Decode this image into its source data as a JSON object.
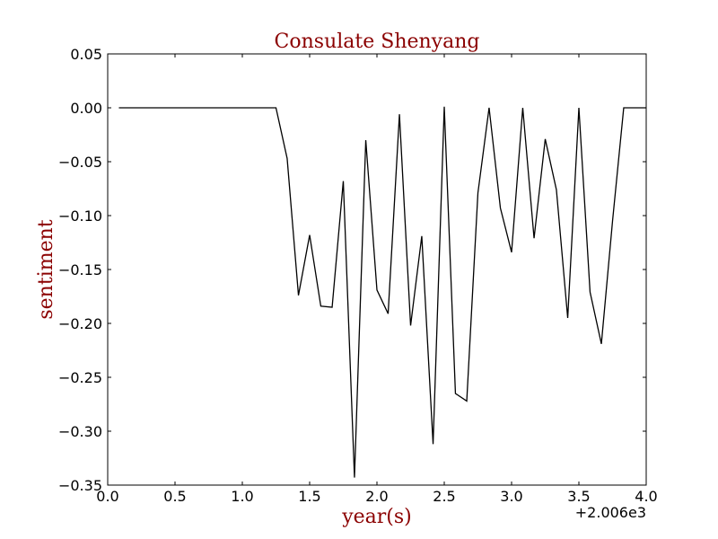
{
  "chart_data": {
    "type": "line",
    "title": "Consulate Shenyang",
    "xlabel": "year(s)",
    "ylabel": "sentiment",
    "x_offset_label": "+2.006e3",
    "xlim": [
      0.0,
      4.0
    ],
    "ylim": [
      -0.35,
      0.05
    ],
    "x_ticks": [
      "0.0",
      "0.5",
      "1.0",
      "1.5",
      "2.0",
      "2.5",
      "3.0",
      "3.5",
      "4.0"
    ],
    "y_ticks": [
      "0.05",
      "0.00",
      "−0.05",
      "−0.10",
      "−0.15",
      "−0.20",
      "−0.25",
      "−0.30",
      "−0.35"
    ],
    "grid": false,
    "colors": {
      "title": "#8b0000",
      "axis_label": "#8b0000",
      "line": "#000000"
    },
    "series": [
      {
        "x": [
          0.083,
          0.167,
          0.25,
          0.333,
          0.417,
          0.5,
          0.583,
          0.667,
          0.75,
          0.833,
          0.917,
          1.0,
          1.083,
          1.167,
          1.25,
          1.333,
          1.417,
          1.5,
          1.583,
          1.667,
          1.75,
          1.833,
          1.917,
          2.0,
          2.083,
          2.167,
          2.25,
          2.333,
          2.417,
          2.5,
          2.583,
          2.667,
          2.75,
          2.833,
          2.917,
          3.0,
          3.083,
          3.167,
          3.25,
          3.333,
          3.417,
          3.5,
          3.583,
          3.667,
          3.75,
          3.833,
          3.917,
          4.0
        ],
        "values": [
          0.0,
          0.0,
          0.0,
          0.0,
          0.0,
          0.0,
          0.0,
          0.0,
          0.0,
          0.0,
          0.0,
          0.0,
          0.0,
          0.0,
          0.0,
          -0.047,
          -0.174,
          -0.118,
          -0.184,
          -0.185,
          -0.068,
          -0.343,
          -0.03,
          -0.169,
          -0.191,
          -0.006,
          -0.202,
          -0.119,
          -0.312,
          0.001,
          -0.265,
          -0.272,
          -0.079,
          0.0,
          -0.093,
          -0.134,
          0.0,
          -0.121,
          -0.029,
          -0.076,
          -0.195,
          0.0,
          -0.171,
          -0.219,
          -0.105,
          0.0,
          0.0,
          0.0
        ]
      }
    ]
  }
}
